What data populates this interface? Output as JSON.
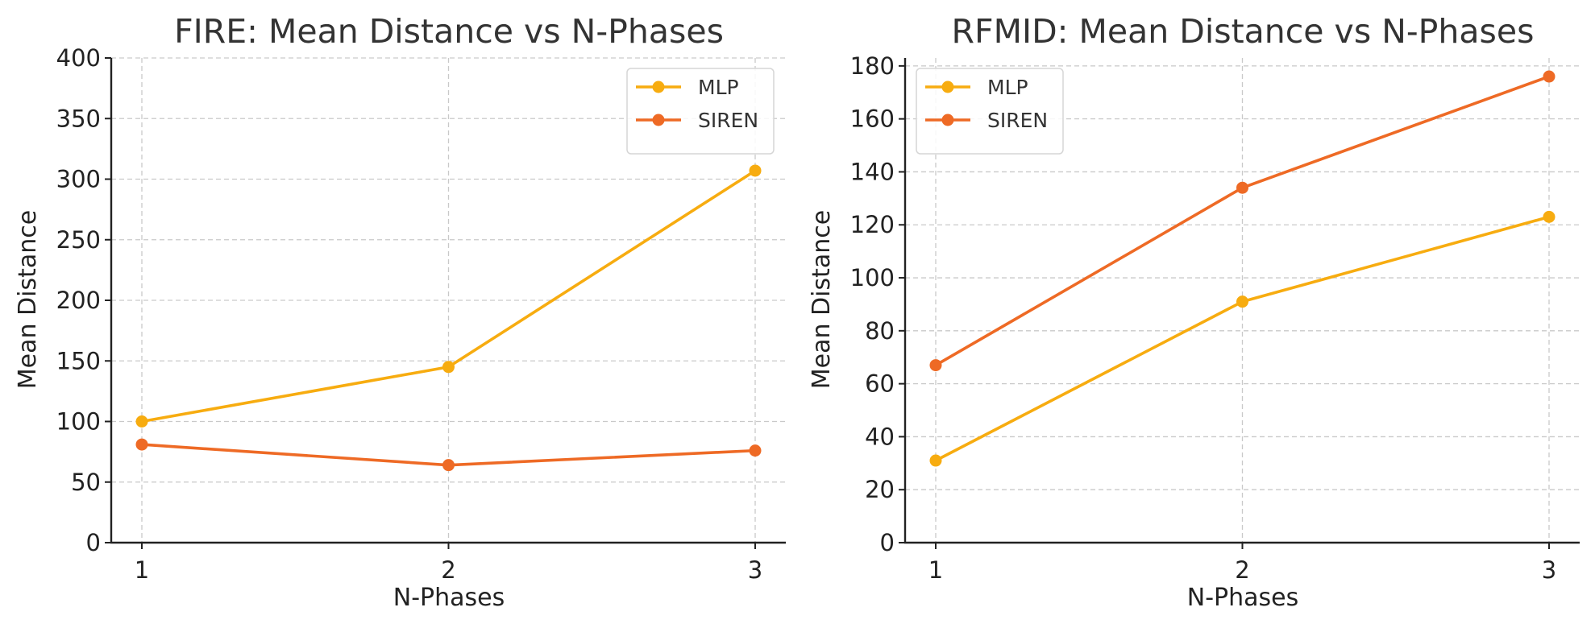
{
  "colors": {
    "MLP": "#F7AC10",
    "SIREN": "#EE6A25"
  },
  "chart_data": [
    {
      "type": "line",
      "title": "FIRE: Mean Distance vs N-Phases",
      "xlabel": "N-Phases",
      "ylabel": "Mean Distance",
      "x": [
        1,
        2,
        3
      ],
      "x_ticks": [
        "1",
        "2",
        "3"
      ],
      "ylim": [
        0,
        400
      ],
      "y_ticks": [
        0,
        50,
        100,
        150,
        200,
        250,
        300,
        350,
        400
      ],
      "grid": true,
      "legend_position": "top-right",
      "series": [
        {
          "name": "MLP",
          "values": [
            100,
            145,
            307
          ]
        },
        {
          "name": "SIREN",
          "values": [
            81,
            64,
            76
          ]
        }
      ]
    },
    {
      "type": "line",
      "title": "RFMID: Mean Distance vs N-Phases",
      "xlabel": "N-Phases",
      "ylabel": "Mean Distance",
      "x": [
        1,
        2,
        3
      ],
      "x_ticks": [
        "1",
        "2",
        "3"
      ],
      "ylim": [
        0,
        183
      ],
      "y_ticks": [
        0,
        20,
        40,
        60,
        80,
        100,
        120,
        140,
        160,
        180
      ],
      "grid": true,
      "legend_position": "top-left",
      "series": [
        {
          "name": "MLP",
          "values": [
            31,
            91,
            123
          ]
        },
        {
          "name": "SIREN",
          "values": [
            67,
            134,
            176
          ]
        }
      ]
    }
  ]
}
